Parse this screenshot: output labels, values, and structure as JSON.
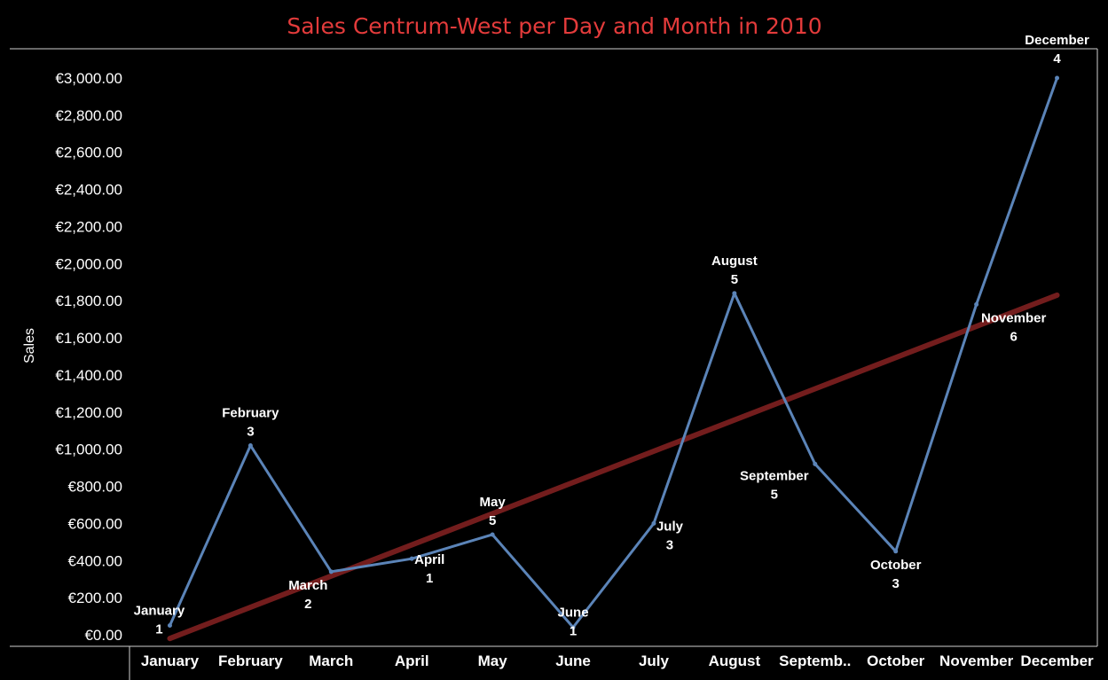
{
  "chart_data": {
    "type": "line",
    "title": "Sales Centrum-West  per Day and Month in 2010",
    "xlabel": "",
    "ylabel": "Sales",
    "ylim": [
      0,
      3000
    ],
    "yticks": [
      "€0.00",
      "€200.00",
      "€400.00",
      "€600.00",
      "€800.00",
      "€1,000.00",
      "€1,200.00",
      "€1,400.00",
      "€1,600.00",
      "€1,800.00",
      "€2,000.00",
      "€2,200.00",
      "€2,400.00",
      "€2,600.00",
      "€2,800.00",
      "€3,000.00"
    ],
    "categories": [
      "January",
      "February",
      "March",
      "April",
      "May",
      "June",
      "July",
      "August",
      "Septemb..",
      "October",
      "November",
      "December"
    ],
    "series": [
      {
        "values": [
          50,
          1020,
          340,
          410,
          540,
          40,
          600,
          1840,
          920,
          450,
          1780,
          3000
        ],
        "color": "#5b84b8",
        "point_labels": [
          "January",
          "February",
          "March",
          "April",
          "May",
          "June",
          "July",
          "August",
          "September",
          "October",
          "November",
          "December"
        ],
        "point_counts": [
          "1",
          "3",
          "2",
          "1",
          "5",
          "1",
          "3",
          "5",
          "5",
          "3",
          "6",
          "4"
        ]
      }
    ],
    "trend_line": {
      "values": [
        -20,
        1830
      ],
      "color": "#7a1f1f"
    },
    "grid": false,
    "legend": "none"
  }
}
